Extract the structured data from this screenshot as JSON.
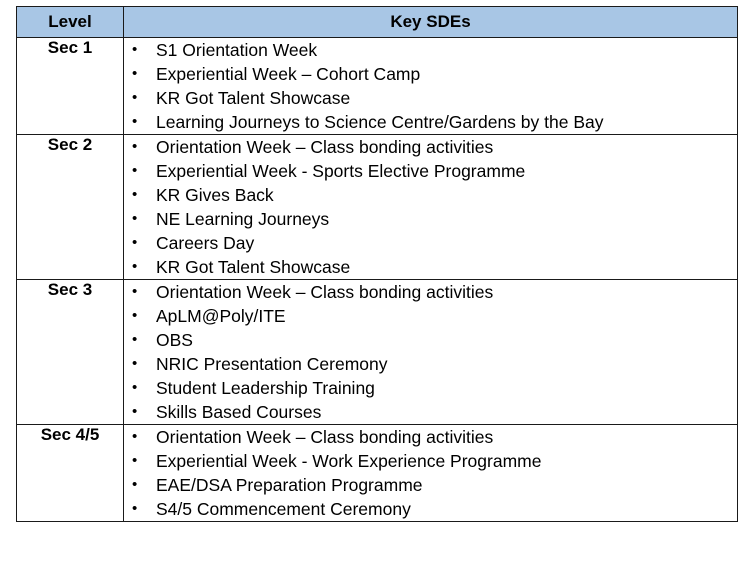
{
  "table": {
    "headers": {
      "level": "Level",
      "key_sdes": "Key SDEs"
    },
    "bullet_glyph": "•",
    "rows": [
      {
        "level": "Sec 1",
        "items": [
          "S1 Orientation Week",
          "Experiential Week – Cohort Camp",
          "KR Got Talent Showcase",
          "Learning Journeys to Science Centre/Gardens by the Bay"
        ]
      },
      {
        "level": "Sec 2",
        "items": [
          "Orientation Week – Class bonding activities",
          "Experiential Week  - Sports Elective Programme",
          "KR Gives Back",
          "NE Learning Journeys",
          "Careers Day",
          "KR Got Talent Showcase"
        ]
      },
      {
        "level": "Sec 3",
        "items": [
          "Orientation Week – Class bonding activities",
          "ApLM@Poly/ITE",
          "OBS",
          "NRIC Presentation Ceremony",
          "Student Leadership Training",
          "Skills Based Courses"
        ]
      },
      {
        "level": "Sec 4/5",
        "items": [
          "Orientation Week – Class bonding activities",
          "Experiential Week  - Work Experience Programme",
          "EAE/DSA Preparation Programme",
          "S4/5 Commencement Ceremony"
        ]
      }
    ]
  }
}
